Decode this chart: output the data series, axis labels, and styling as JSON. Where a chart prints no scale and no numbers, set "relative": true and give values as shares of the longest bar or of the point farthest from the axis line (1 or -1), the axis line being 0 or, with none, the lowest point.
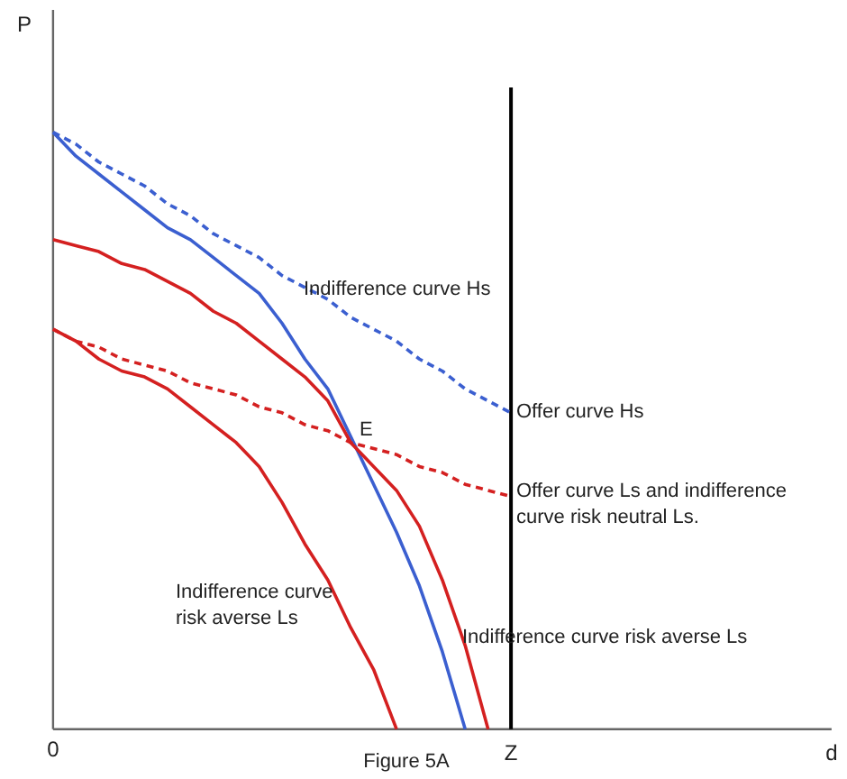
{
  "chart_data": {
    "type": "line",
    "relative": true,
    "xlabel": "d",
    "ylabel": "P",
    "categories": [
      "0",
      null,
      null,
      null,
      null,
      null,
      null,
      null,
      null,
      null,
      null,
      null,
      null,
      null,
      null,
      null,
      null,
      null,
      null,
      null,
      "Z",
      null,
      null,
      null,
      null,
      null,
      null,
      null,
      null,
      null,
      null,
      null,
      null,
      null,
      null
    ],
    "grid": false,
    "marker": "none",
    "series": [
      {
        "color": "#3b5fd0",
        "line_style": "solid",
        "values": [
          1,
          0.96,
          0.93,
          0.9,
          0.87,
          0.84,
          0.82,
          0.79,
          0.76,
          0.73,
          0.68,
          0.62,
          0.57,
          0.49,
          0.41,
          0.33,
          0.24,
          0.13,
          0,
          null,
          null,
          null,
          null,
          null,
          null,
          null,
          null,
          null,
          null,
          null,
          null,
          null,
          null,
          null,
          null
        ]
      },
      {
        "color": "#3b5fd0",
        "line_style": "dashed",
        "values": [
          1,
          0.98,
          0.95,
          0.93,
          0.91,
          0.88,
          0.86,
          0.83,
          0.81,
          0.79,
          0.76,
          0.74,
          0.72,
          0.69,
          0.67,
          0.65,
          0.62,
          0.6,
          0.57,
          0.55,
          0.53,
          null,
          null,
          null,
          null,
          null,
          null,
          null,
          null,
          null,
          null,
          null,
          null,
          null,
          null
        ]
      },
      {
        "color": "#d42020",
        "line_style": "dashed",
        "values": [
          0.67,
          0.65,
          0.64,
          0.62,
          0.61,
          0.6,
          0.58,
          0.57,
          0.56,
          0.54,
          0.53,
          0.51,
          0.5,
          0.48,
          0.47,
          0.46,
          0.44,
          0.43,
          0.41,
          0.4,
          0.39,
          null,
          null,
          null,
          null,
          null,
          null,
          null,
          null,
          null,
          null,
          null,
          null,
          null,
          null
        ]
      },
      {
        "color": "#d42020",
        "line_style": "solid",
        "values": [
          0.82,
          0.81,
          0.8,
          0.78,
          0.77,
          0.75,
          0.73,
          0.7,
          0.68,
          0.65,
          0.62,
          0.59,
          0.55,
          0.48,
          0.44,
          0.4,
          0.34,
          0.25,
          0.14,
          0,
          null,
          null,
          null,
          null,
          null,
          null,
          null,
          null,
          null,
          null,
          null,
          null,
          null,
          null,
          null
        ]
      },
      {
        "color": "#d42020",
        "line_style": "solid",
        "values": [
          0.67,
          0.65,
          0.62,
          0.6,
          0.59,
          0.57,
          0.54,
          0.51,
          0.48,
          0.44,
          0.38,
          0.31,
          0.25,
          0.17,
          0.1,
          0,
          null,
          null,
          null,
          null,
          null,
          null,
          null,
          null,
          null,
          null,
          null,
          null,
          null,
          null,
          null,
          null,
          null,
          null,
          null
        ]
      }
    ],
    "ref_lines": [
      {
        "axis": "x",
        "value": "Z",
        "color": "#000000",
        "line_style": "solid"
      }
    ],
    "annotations": [
      "E",
      "Indifference curve Hs",
      "Offer curve Hs",
      "Offer curve Ls and indifference\ncurve risk neutral Ls.",
      "Indifference curve\nrisk averse Ls",
      "Indifference curve risk averse Ls",
      "Figure 5A"
    ]
  }
}
